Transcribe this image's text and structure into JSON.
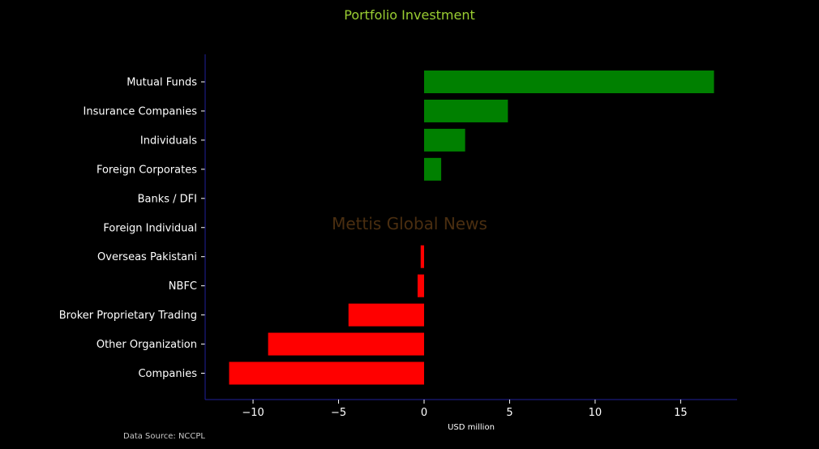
{
  "chart_data": {
    "type": "bar",
    "orientation": "horizontal",
    "title": "Portfolio Investment",
    "xlabel": "USD million",
    "categories": [
      "Mutual Funds",
      "Insurance Companies",
      "Individuals",
      "Foreign Corporates ",
      "Banks / DFI",
      "Foreign Individual",
      "Overseas Pakistani",
      "NBFC",
      "Broker Proprietary Trading",
      "Other Organization",
      "Companies"
    ],
    "values": [
      16.95,
      4.9,
      2.4,
      1.0,
      0.0,
      0.0,
      -0.2,
      -0.38,
      -4.42,
      -9.12,
      -11.4
    ],
    "xlim": [
      -12.8,
      18.3
    ],
    "xticks": [
      -10,
      -5,
      0,
      5,
      10,
      15
    ],
    "xtick_labels": [
      "−10",
      "−5",
      "0",
      "5",
      "10",
      "15"
    ],
    "grid": false,
    "positive_color": "#008000",
    "negative_color": "#ff0000"
  },
  "source_text": "Data Source: NCCPL",
  "watermark_text": "Mettis Global News",
  "colors": {
    "background": "#000000",
    "title": "#9acd32",
    "text": "#ffffff",
    "axis": "#1f1f9a",
    "watermark": "#4a2e10"
  }
}
